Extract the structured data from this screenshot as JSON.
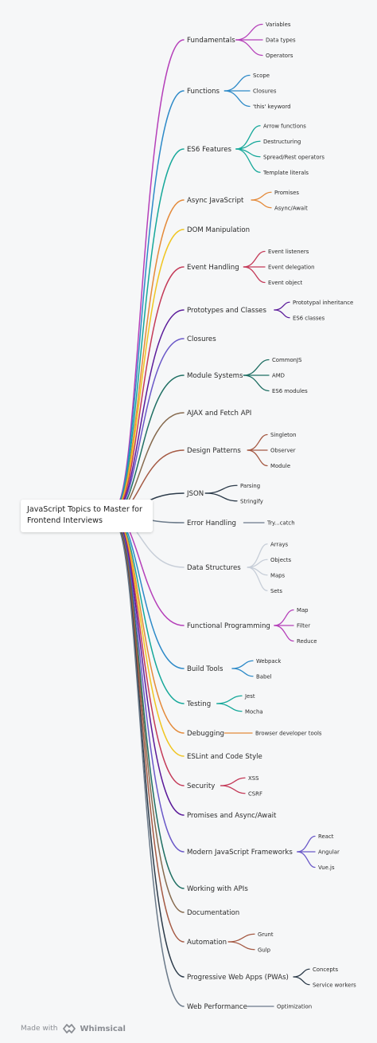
{
  "root": {
    "title_line1": "JavaScript Topics to Master for",
    "title_line2": "Frontend Interviews"
  },
  "footer": {
    "made_with": "Made with",
    "brand": "Whimsical",
    "logo_icon": "whimsical-logo-icon"
  },
  "topics": [
    {
      "label": "Fundamentals",
      "color": "#b53fb9",
      "children": [
        "Variables",
        "Data types",
        "Operators"
      ]
    },
    {
      "label": "Functions",
      "color": "#2d8ac8",
      "children": [
        "Scope",
        "Closures",
        "'this' keyword"
      ]
    },
    {
      "label": "ES6 Features",
      "color": "#16a89a",
      "children": [
        "Arrow functions",
        "Destructuring",
        "Spread/Rest operators",
        "Template literals"
      ]
    },
    {
      "label": "Async JavaScript",
      "color": "#e48a3a",
      "children": [
        "Promises",
        "Async/Await"
      ]
    },
    {
      "label": "DOM Manipulation",
      "color": "#f0c520",
      "children": []
    },
    {
      "label": "Event Handling",
      "color": "#c43a58",
      "children": [
        "Event listeners",
        "Event delegation",
        "Event object"
      ]
    },
    {
      "label": "Prototypes and Classes",
      "color": "#5b1b9a",
      "children": [
        "Prototypal inheritance",
        "ES6 classes"
      ]
    },
    {
      "label": "Closures",
      "color": "#6a58c8",
      "children": []
    },
    {
      "label": "Module Systems",
      "color": "#1f6f63",
      "children": [
        "CommonJS",
        "AMD",
        "ES6 modules"
      ]
    },
    {
      "label": "AJAX and Fetch API",
      "color": "#866a4e",
      "children": []
    },
    {
      "label": "Design Patterns",
      "color": "#a55a44",
      "children": [
        "Singleton",
        "Observer",
        "Module"
      ]
    },
    {
      "label": "JSON",
      "color": "#2c3b4a",
      "children": [
        "Parsing",
        "Stringify"
      ]
    },
    {
      "label": "Error Handling",
      "color": "#6b7a8a",
      "children": [
        "Try...catch"
      ]
    },
    {
      "label": "Data Structures",
      "color": "#c7ced8",
      "children": [
        "Arrays",
        "Objects",
        "Maps",
        "Sets"
      ]
    },
    {
      "label": "Functional Programming",
      "color": "#b53fb9",
      "children": [
        "Map",
        "Filter",
        "Reduce"
      ]
    },
    {
      "label": "Build Tools",
      "color": "#2d8ac8",
      "children": [
        "Webpack",
        "Babel"
      ]
    },
    {
      "label": "Testing",
      "color": "#16a89a",
      "children": [
        "Jest",
        "Mocha"
      ]
    },
    {
      "label": "Debugging",
      "color": "#e48a3a",
      "children": [
        "Browser developer tools"
      ]
    },
    {
      "label": "ESLint and Code Style",
      "color": "#f0c520",
      "children": []
    },
    {
      "label": "Security",
      "color": "#c43a58",
      "children": [
        "XSS",
        "CSRF"
      ]
    },
    {
      "label": "Promises and Async/Await",
      "color": "#5b1b9a",
      "children": []
    },
    {
      "label": "Modern JavaScript Frameworks",
      "color": "#6a58c8",
      "children": [
        "React",
        "Angular",
        "Vue.js"
      ]
    },
    {
      "label": "Working with APIs",
      "color": "#1f6f63",
      "children": []
    },
    {
      "label": "Documentation",
      "color": "#866a4e",
      "children": []
    },
    {
      "label": "Automation",
      "color": "#a55a44",
      "children": [
        "Grunt",
        "Gulp"
      ]
    },
    {
      "label": "Progressive Web Apps (PWAs)",
      "color": "#2c3b4a",
      "children": [
        "Concepts",
        "Service workers"
      ]
    },
    {
      "label": "Web Performance",
      "color": "#6b7a8a",
      "children": [
        "Optimization"
      ]
    }
  ]
}
